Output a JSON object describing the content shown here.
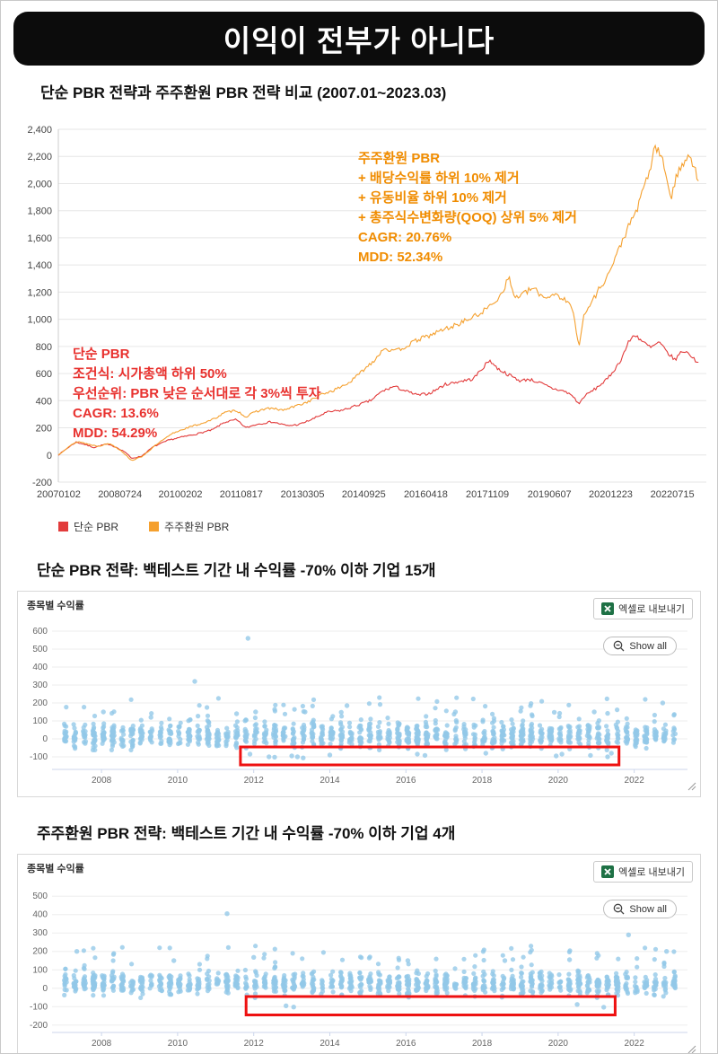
{
  "banner": {
    "title": "이익이 전부가 아니다"
  },
  "subtitle": "단순 PBR 전략과 주주환원 PBR 전략 비교 (2007.01~2023.03)",
  "sections": {
    "simple": {
      "title": "단순 PBR 전략: 백테스트 기간 내 수익률 -70% 이하 기업 15개"
    },
    "shareholder": {
      "title": "주주환원 PBR 전략: 백테스트 기간 내 수익률 -70% 이하 기업 4개"
    }
  },
  "panel": {
    "y_axis_label": "종목별 수익률",
    "export_button": "엑셀로 내보내기",
    "show_all": "Show all"
  },
  "colors": {
    "simple_pbr": "#e23b3b",
    "shareholder_pbr": "#f5a02e",
    "annotation_orange": "#f08c00",
    "annotation_red": "#e8312e",
    "scatter_dot": "#92c8e8",
    "highlight_box": "#ee1111",
    "excel_green": "#1e7145"
  },
  "chart_data": [
    {
      "type": "line",
      "title": "단순 PBR 전략과 주주환원 PBR 전략 비교 (2007.01~2023.03)",
      "x_range": [
        2007.0,
        2023.4
      ],
      "y_range": [
        -200,
        2400
      ],
      "y_tick_step": 200,
      "x_ticks": [
        "20070102",
        "20080724",
        "20100202",
        "20110817",
        "20130305",
        "20140925",
        "20160418",
        "20171109",
        "20190607",
        "20201223",
        "20220715"
      ],
      "x_tick_years": [
        2007.01,
        2008.56,
        2010.09,
        2011.63,
        2013.18,
        2014.73,
        2016.3,
        2017.86,
        2019.43,
        2020.98,
        2022.54
      ],
      "legend": [
        {
          "label": "단순 PBR",
          "color": "#e23b3b"
        },
        {
          "label": "주주환원 PBR",
          "color": "#f5a02e"
        }
      ],
      "annotations": [
        {
          "color": "#f08c00",
          "lines": [
            "주주환원 PBR",
            "+ 배당수익률 하위 10% 제거",
            "+ 유동비율 하위 10% 제거",
            "+ 총주식수변화량(QOQ) 상위 5% 제거",
            "CAGR: 20.76%",
            "MDD: 52.34%"
          ]
        },
        {
          "color": "#e8312e",
          "lines": [
            "단순 PBR",
            "조건식: 시가총액 하위 50%",
            "우선순위: PBR 낮은 순서대로 각 3%씩 투자",
            "CAGR: 13.6%",
            "MDD: 54.29%"
          ]
        }
      ],
      "series": [
        {
          "name": "단순 PBR",
          "color": "#e23b3b",
          "seed": 7,
          "cagr": "13.6%",
          "mdd": "54.29%",
          "points": [
            [
              2007.0,
              0
            ],
            [
              2007.25,
              55
            ],
            [
              2007.45,
              95
            ],
            [
              2007.7,
              75
            ],
            [
              2007.9,
              55
            ],
            [
              2008.2,
              80
            ],
            [
              2008.45,
              60
            ],
            [
              2008.7,
              20
            ],
            [
              2008.85,
              -25
            ],
            [
              2009.1,
              -10
            ],
            [
              2009.4,
              60
            ],
            [
              2009.8,
              110
            ],
            [
              2010.1,
              130
            ],
            [
              2010.5,
              155
            ],
            [
              2010.9,
              185
            ],
            [
              2011.2,
              240
            ],
            [
              2011.5,
              260
            ],
            [
              2011.75,
              200
            ],
            [
              2012.0,
              225
            ],
            [
              2012.4,
              245
            ],
            [
              2012.8,
              215
            ],
            [
              2013.1,
              225
            ],
            [
              2013.4,
              260
            ],
            [
              2013.8,
              315
            ],
            [
              2014.2,
              330
            ],
            [
              2014.6,
              370
            ],
            [
              2014.9,
              400
            ],
            [
              2015.2,
              470
            ],
            [
              2015.5,
              505
            ],
            [
              2015.8,
              470
            ],
            [
              2016.1,
              440
            ],
            [
              2016.4,
              455
            ],
            [
              2016.8,
              520
            ],
            [
              2017.2,
              545
            ],
            [
              2017.5,
              560
            ],
            [
              2017.75,
              645
            ],
            [
              2017.92,
              700
            ],
            [
              2018.1,
              640
            ],
            [
              2018.4,
              590
            ],
            [
              2018.7,
              545
            ],
            [
              2018.9,
              560
            ],
            [
              2019.2,
              530
            ],
            [
              2019.5,
              490
            ],
            [
              2019.8,
              470
            ],
            [
              2020.0,
              440
            ],
            [
              2020.18,
              375
            ],
            [
              2020.3,
              430
            ],
            [
              2020.6,
              490
            ],
            [
              2020.9,
              560
            ],
            [
              2021.2,
              680
            ],
            [
              2021.45,
              840
            ],
            [
              2021.6,
              890
            ],
            [
              2021.8,
              830
            ],
            [
              2022.0,
              790
            ],
            [
              2022.2,
              830
            ],
            [
              2022.4,
              760
            ],
            [
              2022.6,
              700
            ],
            [
              2022.8,
              770
            ],
            [
              2023.0,
              740
            ],
            [
              2023.1,
              700
            ],
            [
              2023.2,
              690
            ]
          ]
        },
        {
          "name": "주주환원 PBR",
          "color": "#f5a02e",
          "seed": 13,
          "cagr": "20.76%",
          "mdd": "52.34%",
          "points": [
            [
              2007.0,
              0
            ],
            [
              2007.25,
              60
            ],
            [
              2007.5,
              100
            ],
            [
              2007.75,
              80
            ],
            [
              2008.0,
              65
            ],
            [
              2008.3,
              85
            ],
            [
              2008.6,
              30
            ],
            [
              2008.85,
              -40
            ],
            [
              2009.1,
              -15
            ],
            [
              2009.5,
              80
            ],
            [
              2009.9,
              160
            ],
            [
              2010.2,
              195
            ],
            [
              2010.6,
              230
            ],
            [
              2010.9,
              260
            ],
            [
              2011.2,
              310
            ],
            [
              2011.5,
              330
            ],
            [
              2011.75,
              280
            ],
            [
              2012.0,
              320
            ],
            [
              2012.3,
              345
            ],
            [
              2012.7,
              330
            ],
            [
              2013.0,
              360
            ],
            [
              2013.3,
              390
            ],
            [
              2013.7,
              450
            ],
            [
              2014.0,
              480
            ],
            [
              2014.4,
              540
            ],
            [
              2014.75,
              635
            ],
            [
              2015.0,
              700
            ],
            [
              2015.25,
              790
            ],
            [
              2015.5,
              760
            ],
            [
              2015.8,
              800
            ],
            [
              2016.1,
              850
            ],
            [
              2016.4,
              880
            ],
            [
              2016.7,
              920
            ],
            [
              2017.0,
              950
            ],
            [
              2017.3,
              990
            ],
            [
              2017.6,
              1030
            ],
            [
              2017.9,
              1090
            ],
            [
              2018.2,
              1180
            ],
            [
              2018.4,
              1310
            ],
            [
              2018.55,
              1160
            ],
            [
              2018.8,
              1190
            ],
            [
              2019.0,
              1230
            ],
            [
              2019.3,
              1160
            ],
            [
              2019.6,
              1190
            ],
            [
              2019.85,
              1130
            ],
            [
              2020.0,
              1090
            ],
            [
              2020.18,
              810
            ],
            [
              2020.3,
              1020
            ],
            [
              2020.5,
              1130
            ],
            [
              2020.7,
              1230
            ],
            [
              2020.9,
              1320
            ],
            [
              2021.1,
              1450
            ],
            [
              2021.3,
              1600
            ],
            [
              2021.5,
              1720
            ],
            [
              2021.7,
              1850
            ],
            [
              2021.85,
              2000
            ],
            [
              2022.0,
              2130
            ],
            [
              2022.1,
              2280
            ],
            [
              2022.25,
              2200
            ],
            [
              2022.4,
              2050
            ],
            [
              2022.5,
              1890
            ],
            [
              2022.65,
              2050
            ],
            [
              2022.8,
              2150
            ],
            [
              2022.95,
              2230
            ],
            [
              2023.05,
              2150
            ],
            [
              2023.15,
              2080
            ],
            [
              2023.2,
              2010
            ]
          ]
        }
      ]
    },
    {
      "type": "scatter",
      "title": "단순 PBR 전략: 백테스트 기간 내 수익률 -70% 이하 기업 15개",
      "y_axis_label": "종목별 수익률",
      "count_below_threshold": 15,
      "x_range": [
        2006.7,
        2023.4
      ],
      "y_range": [
        -170,
        630
      ],
      "y_labels": [
        600,
        500,
        400,
        300,
        200,
        100,
        0,
        -100
      ],
      "x_ticks": [
        2008,
        2010,
        2012,
        2014,
        2016,
        2018,
        2020,
        2022
      ],
      "dot_color": "#92c8e8",
      "seed": 101,
      "cloud": {
        "n": 1250,
        "columns": 65,
        "x_start": 2007.05,
        "x_step": 0.25,
        "y_center": 15,
        "y_spread": 55,
        "y_tail": 170,
        "y_min": -62,
        "y_max": 245
      },
      "outliers": [
        [
          2011.85,
          560
        ],
        [
          2010.45,
          320
        ],
        [
          2008.05,
          150
        ],
        [
          2009.3,
          120
        ],
        [
          2011.55,
          140
        ],
        [
          2012.05,
          150
        ],
        [
          2013.35,
          150
        ],
        [
          2014.3,
          148
        ],
        [
          2014.45,
          185
        ],
        [
          2017.3,
          150
        ],
        [
          2019.9,
          148
        ],
        [
          2020.95,
          150
        ],
        [
          2021.3,
          142
        ],
        [
          2022.75,
          200
        ]
      ],
      "low_points": [
        [
          2011.9,
          -85
        ],
        [
          2012.4,
          -100
        ],
        [
          2012.55,
          -102
        ],
        [
          2013.0,
          -95
        ],
        [
          2013.15,
          -100
        ],
        [
          2013.3,
          -106
        ],
        [
          2014.0,
          -90
        ],
        [
          2016.3,
          -85
        ],
        [
          2016.5,
          -92
        ],
        [
          2018.1,
          -80
        ],
        [
          2019.95,
          -95
        ],
        [
          2020.1,
          -85
        ],
        [
          2020.85,
          -92
        ],
        [
          2021.3,
          -100
        ],
        [
          2021.4,
          -80
        ]
      ],
      "red_box": {
        "x0": 2011.65,
        "x1": 2021.6,
        "y0": -145,
        "y1": -45
      }
    },
    {
      "type": "scatter",
      "title": "주주환원 PBR 전략: 백테스트 기간 내 수익률 -70% 이하 기업 4개",
      "y_axis_label": "종목별 수익률",
      "count_below_threshold": 4,
      "x_range": [
        2006.7,
        2023.4
      ],
      "y_range": [
        -240,
        540
      ],
      "y_labels": [
        500,
        400,
        300,
        200,
        100,
        0,
        -100,
        -200
      ],
      "x_ticks": [
        2008,
        2010,
        2012,
        2014,
        2016,
        2018,
        2020,
        2022
      ],
      "dot_color": "#92c8e8",
      "seed": 202,
      "cloud": {
        "n": 1200,
        "columns": 65,
        "x_start": 2007.05,
        "x_step": 0.25,
        "y_center": 25,
        "y_spread": 50,
        "y_tail": 170,
        "y_min": -52,
        "y_max": 255
      },
      "outliers": [
        [
          2011.3,
          405
        ],
        [
          2007.35,
          200
        ],
        [
          2009.9,
          150
        ],
        [
          2012.0,
          168
        ],
        [
          2016.05,
          150
        ],
        [
          2018.6,
          150
        ],
        [
          2020.3,
          155
        ],
        [
          2021.85,
          290
        ],
        [
          2022.85,
          200
        ]
      ],
      "low_points": [
        [
          2012.85,
          -95
        ],
        [
          2013.05,
          -102
        ],
        [
          2020.5,
          -88
        ],
        [
          2021.2,
          -103
        ]
      ],
      "red_box": {
        "x0": 2011.8,
        "x1": 2021.5,
        "y0": -145,
        "y1": -45
      }
    }
  ]
}
